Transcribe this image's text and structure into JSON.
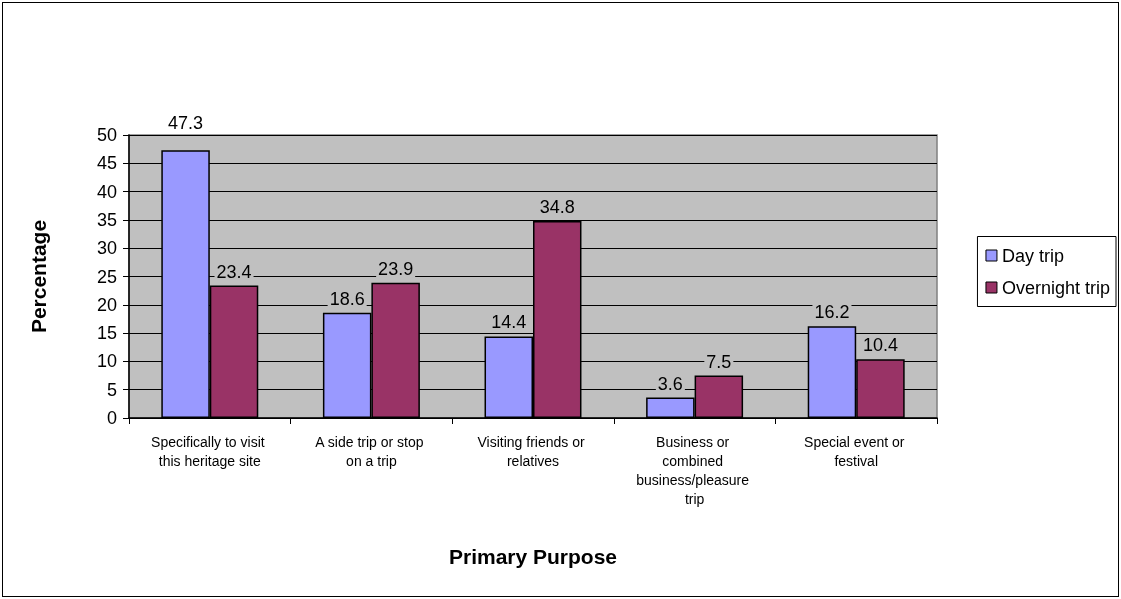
{
  "chart_data": {
    "type": "bar",
    "xlabel": "Primary Purpose",
    "ylabel": "Percentage",
    "categories": [
      "Specifically to visit this heritage site",
      "A side trip or stop on a trip",
      "Visiting friends or relatives",
      "Business or combined business/pleasure trip",
      "Special event or festival"
    ],
    "series": [
      {
        "name": "Day trip",
        "color": "#9999ff",
        "values": [
          47.3,
          18.6,
          14.4,
          3.6,
          16.2
        ]
      },
      {
        "name": "Overnight trip",
        "color": "#993366",
        "values": [
          23.4,
          23.9,
          34.8,
          7.5,
          10.4
        ]
      }
    ],
    "ylim": [
      0,
      50
    ],
    "yticks": [
      0,
      5,
      10,
      15,
      20,
      25,
      30,
      35,
      40,
      45,
      50
    ],
    "grid": "y",
    "legend": "right",
    "data_labels": true
  }
}
